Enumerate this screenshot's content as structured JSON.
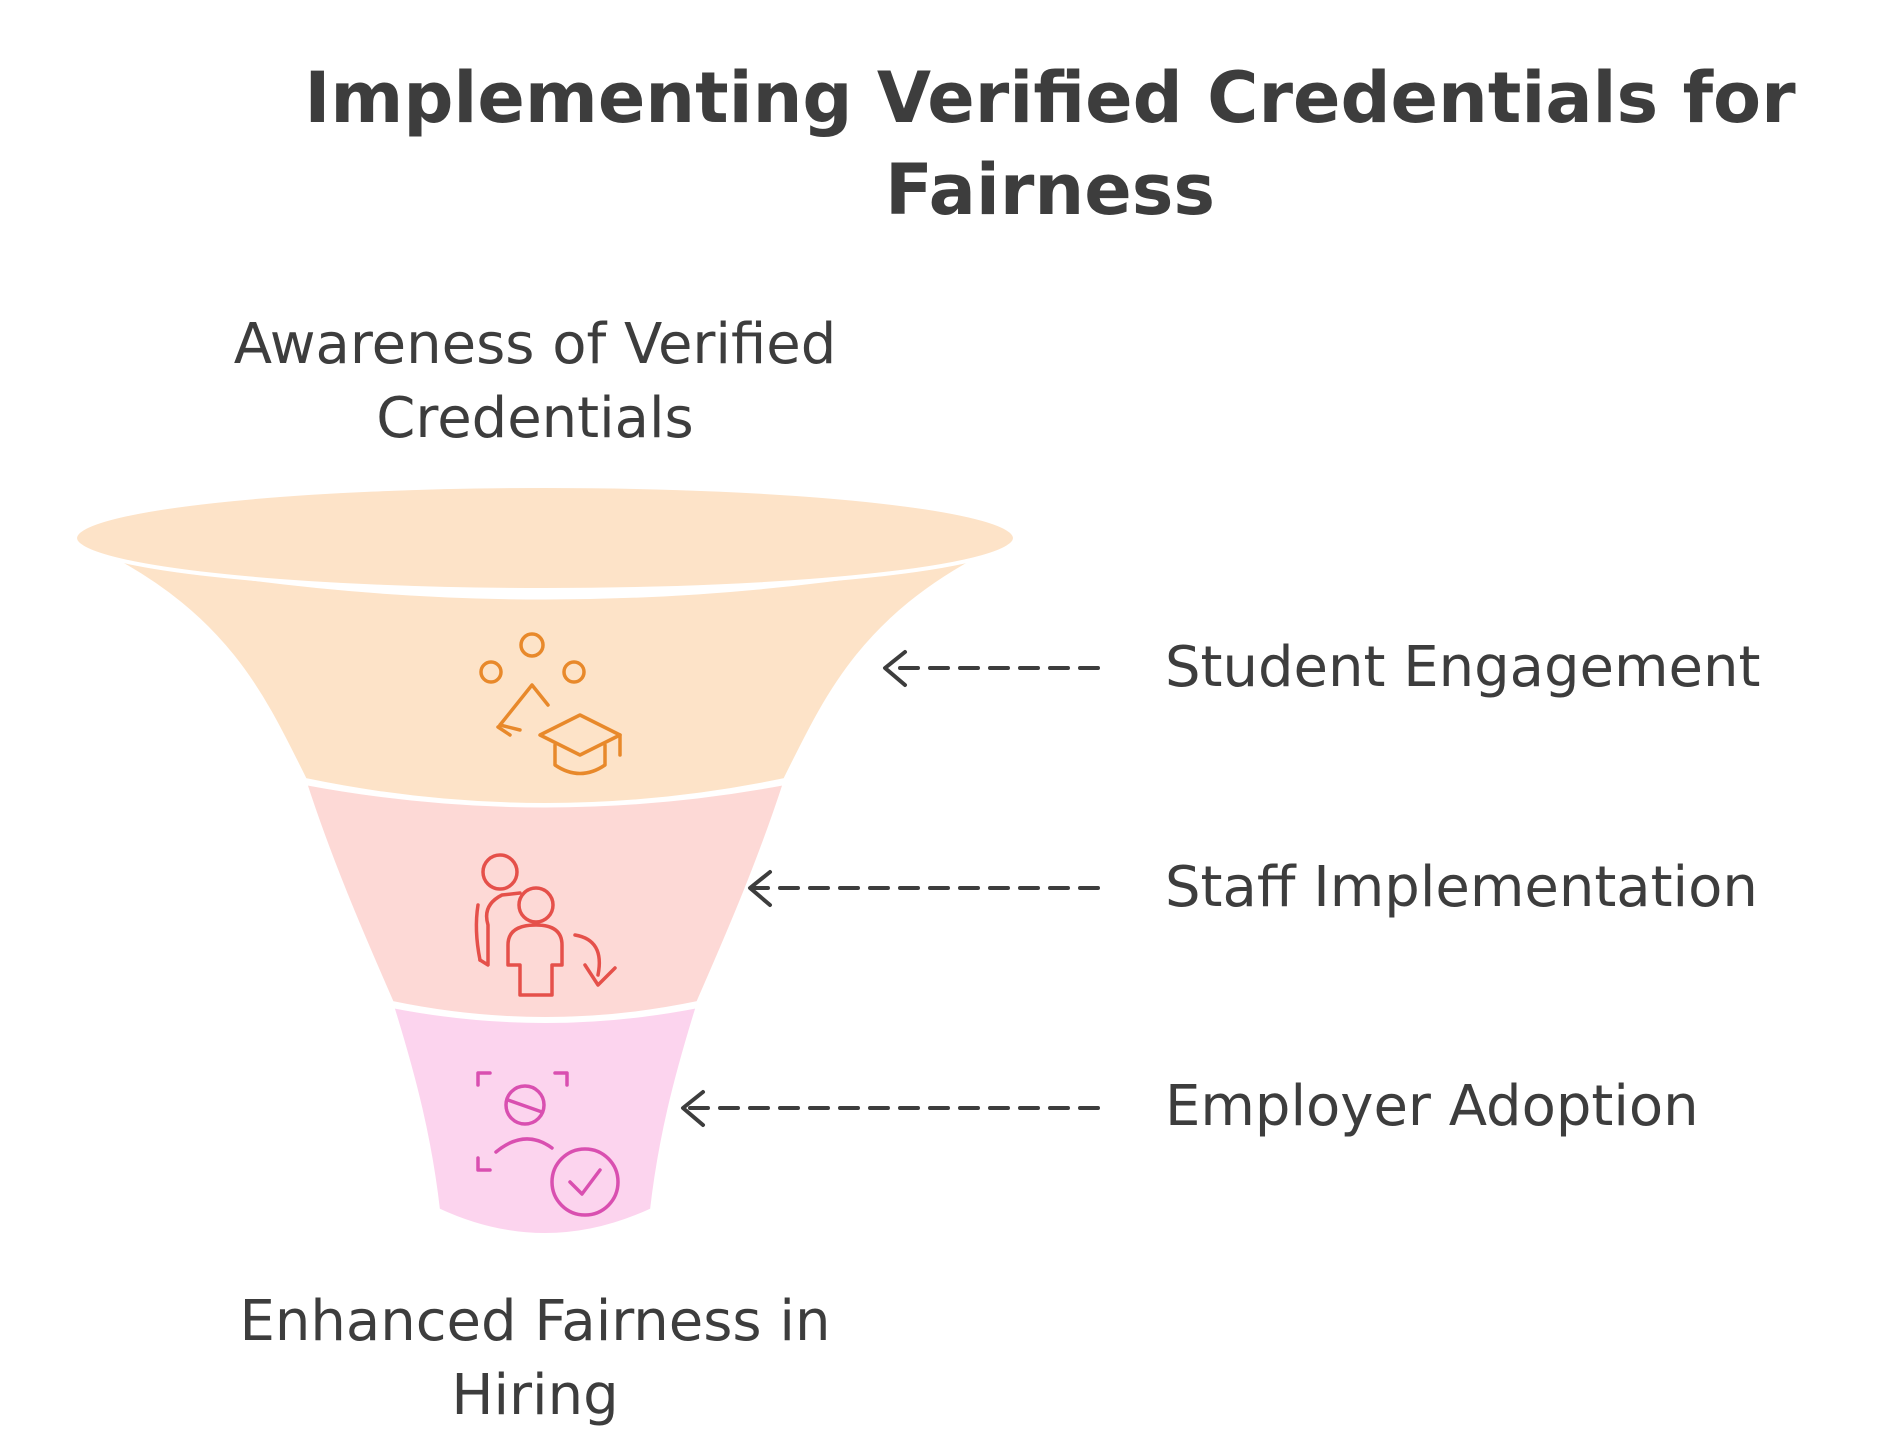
{
  "title": {
    "line1": "Implementing Verified Credentials for",
    "line2": "Fairness"
  },
  "funnel": {
    "top_label": {
      "line1": "Awareness of Verified",
      "line2": "Credentials"
    },
    "bottom_label": {
      "line1": "Enhanced Fairness in",
      "line2": "Hiring"
    },
    "stages": [
      {
        "label": "Student Engagement",
        "icon": "students-graduation-cap-icon",
        "fill": "#fde3c8",
        "stroke": "#e8892b"
      },
      {
        "label": "Staff Implementation",
        "icon": "staff-transfer-icon",
        "fill": "#fdd9d6",
        "stroke": "#e5504a"
      },
      {
        "label": "Employer Adoption",
        "icon": "verified-person-check-icon",
        "fill": "#fcd4ee",
        "stroke": "#d94fb0"
      }
    ]
  },
  "colors": {
    "text": "#3d3d3d",
    "arrow": "#3d3d3d",
    "funnel_rim": "#fde3c8"
  }
}
